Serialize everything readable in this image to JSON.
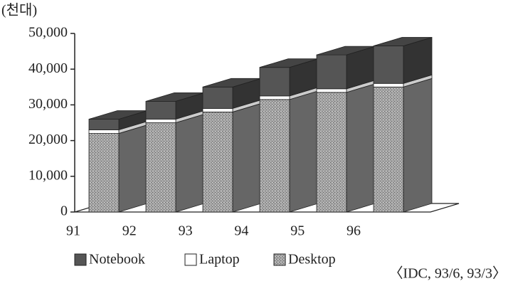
{
  "chart_data": {
    "type": "bar3d_stacked",
    "unit_label": "(천대)",
    "source": "〈IDC, 93/6, 93/3〉",
    "categories": [
      "91",
      "92",
      "93",
      "94",
      "95",
      "96"
    ],
    "series": [
      {
        "name": "Desktop",
        "color": "#9a9a9a",
        "values": [
          22000,
          25000,
          28000,
          31500,
          33500,
          35000
        ]
      },
      {
        "name": "Laptop",
        "color": "#ffffff",
        "values": [
          1000,
          1000,
          1000,
          1000,
          1000,
          1000
        ]
      },
      {
        "name": "Notebook",
        "color": "#555555",
        "values": [
          3000,
          5000,
          6000,
          8000,
          9500,
          10500
        ]
      }
    ],
    "legend_order": [
      2,
      1,
      0
    ],
    "ylim": [
      0,
      50000
    ],
    "yticks": [
      0,
      {
        "value": 10000,
        "label": "10,000"
      },
      {
        "value": 20000,
        "label": "20,000"
      },
      {
        "value": 30000,
        "label": "30,000"
      },
      {
        "value": 40000,
        "label": "40,000"
      },
      {
        "value": 50000,
        "label": "50,000"
      }
    ]
  }
}
